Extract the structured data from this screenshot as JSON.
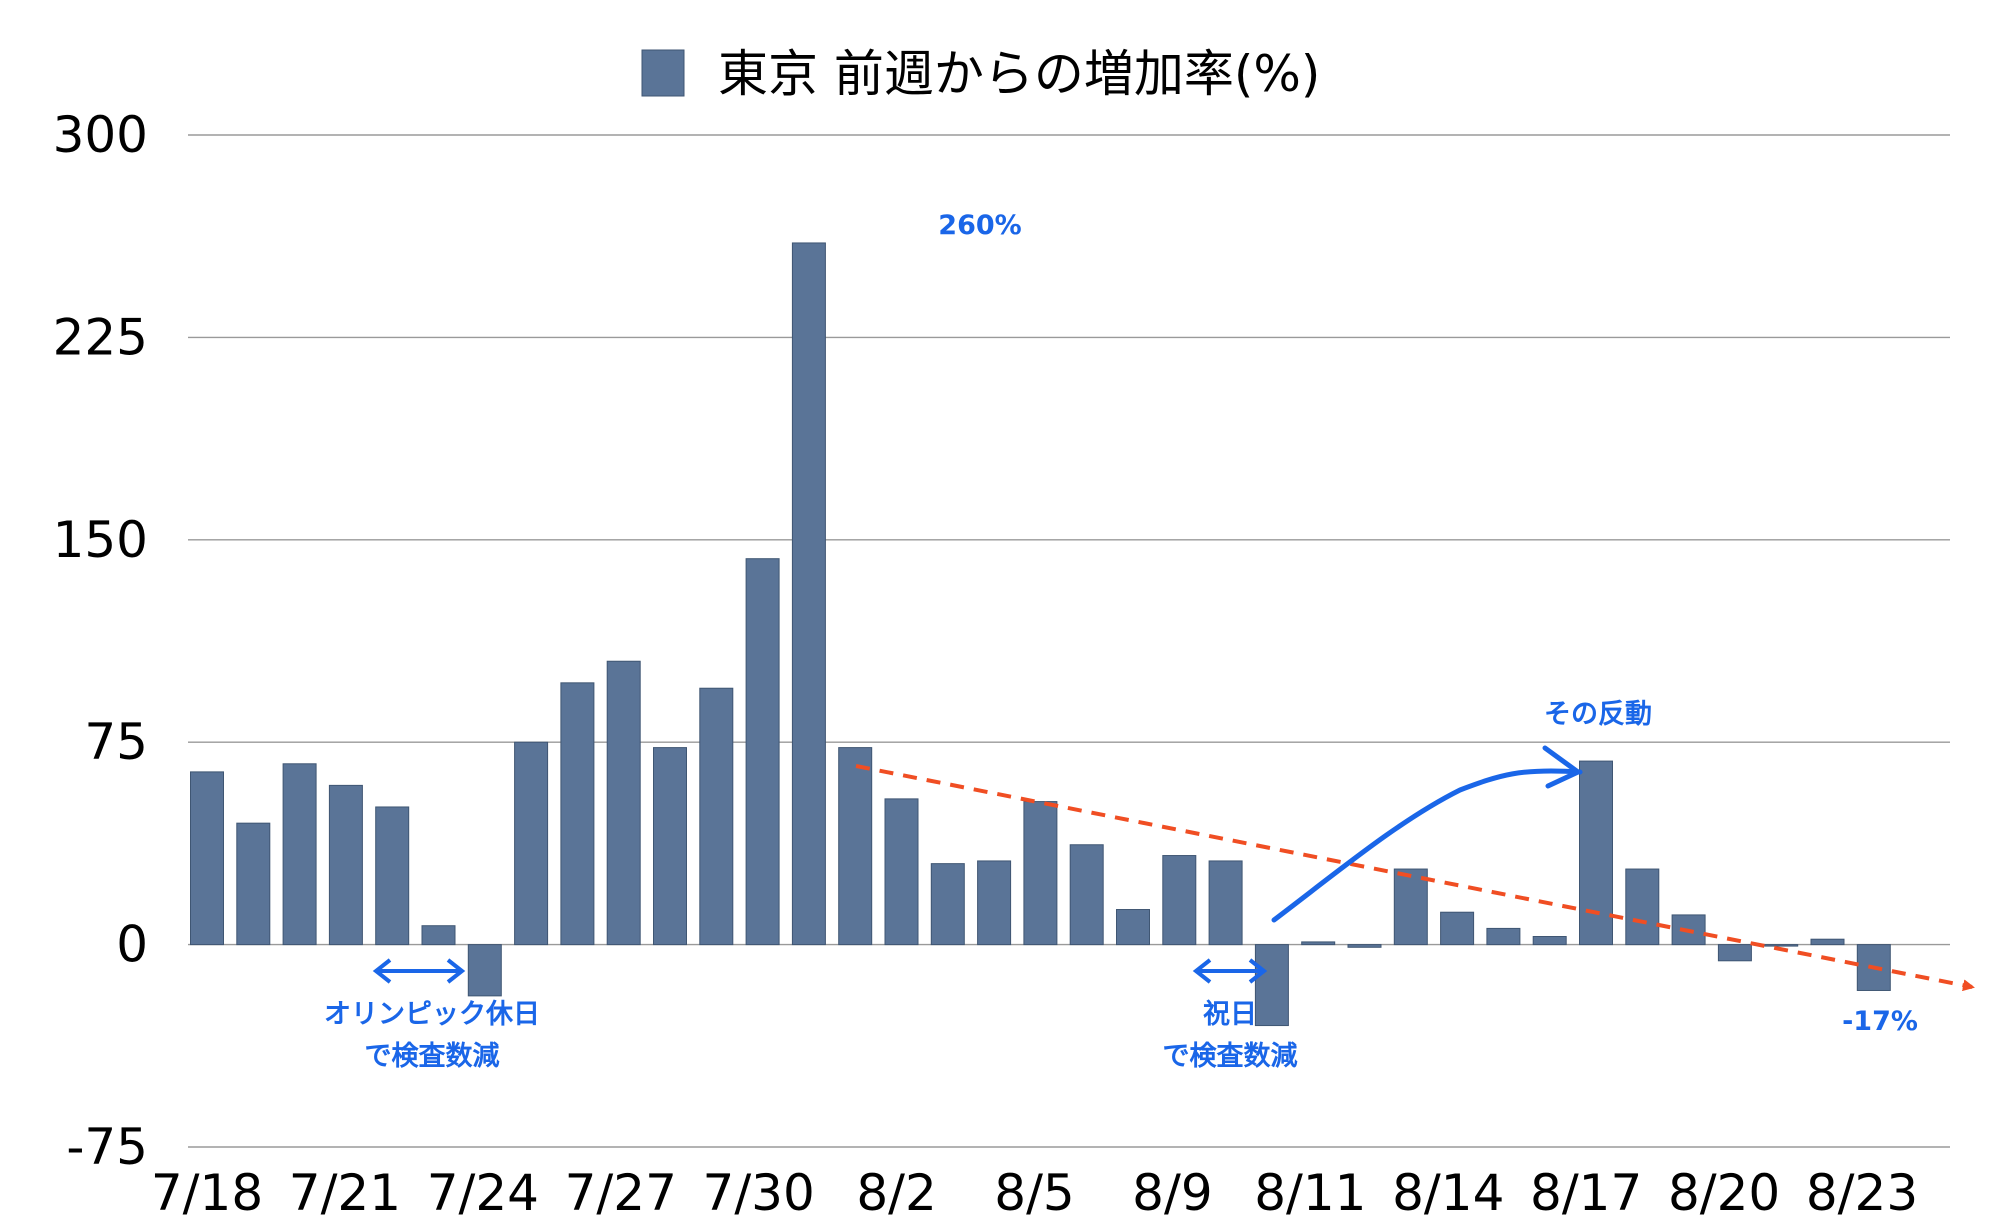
{
  "chart_data": {
    "type": "bar",
    "title": "",
    "legend": [
      {
        "label": "東京 前週からの増加率(%)",
        "color": "#5a7497",
        "position": "top-center"
      }
    ],
    "categories": [
      "7/18",
      "7/19",
      "7/20",
      "7/21",
      "7/22",
      "7/23",
      "7/24",
      "7/25",
      "7/26",
      "7/27",
      "7/28",
      "7/29",
      "7/30",
      "7/31",
      "8/1",
      "8/2",
      "8/3",
      "8/4",
      "8/5",
      "8/6",
      "8/7",
      "8/8",
      "8/9",
      "8/10",
      "8/11",
      "8/12",
      "8/13",
      "8/14",
      "8/15",
      "8/16",
      "8/17",
      "8/18",
      "8/19",
      "8/20",
      "8/21",
      "8/22",
      "8/23"
    ],
    "x_tick_labels": [
      "7/18",
      "7/21",
      "7/24",
      "7/27",
      "7/30",
      "8/2",
      "8/5",
      "8/9",
      "8/11",
      "8/14",
      "8/17",
      "8/20",
      "8/23"
    ],
    "series": [
      {
        "name": "東京 前週からの増加率(%)",
        "color": "#5a7497",
        "values": [
          64,
          45,
          67,
          59,
          51,
          7,
          -19,
          75,
          97,
          105,
          73,
          95,
          143,
          260,
          73,
          54,
          30,
          31,
          53,
          37,
          13,
          33,
          31,
          -30,
          1,
          -1,
          28,
          12,
          6,
          3,
          68,
          28,
          11,
          -6,
          0,
          2,
          -17
        ]
      }
    ],
    "ylim": [
      -75,
      300
    ],
    "y_ticks": [
      300,
      225,
      150,
      75,
      0,
      -75
    ],
    "grid": true,
    "xlabel": "",
    "ylabel": "",
    "annotations": {
      "peak": "260%",
      "olympic_line1": "オリンピック休日",
      "olympic_line2": "で検査数減",
      "holiday_line1": "祝日",
      "holiday_line2": "で検査数減",
      "rebound": "その反動",
      "last": "-17%"
    },
    "trend_color": "#f04e23",
    "annotation_color": "#1a66e8"
  }
}
